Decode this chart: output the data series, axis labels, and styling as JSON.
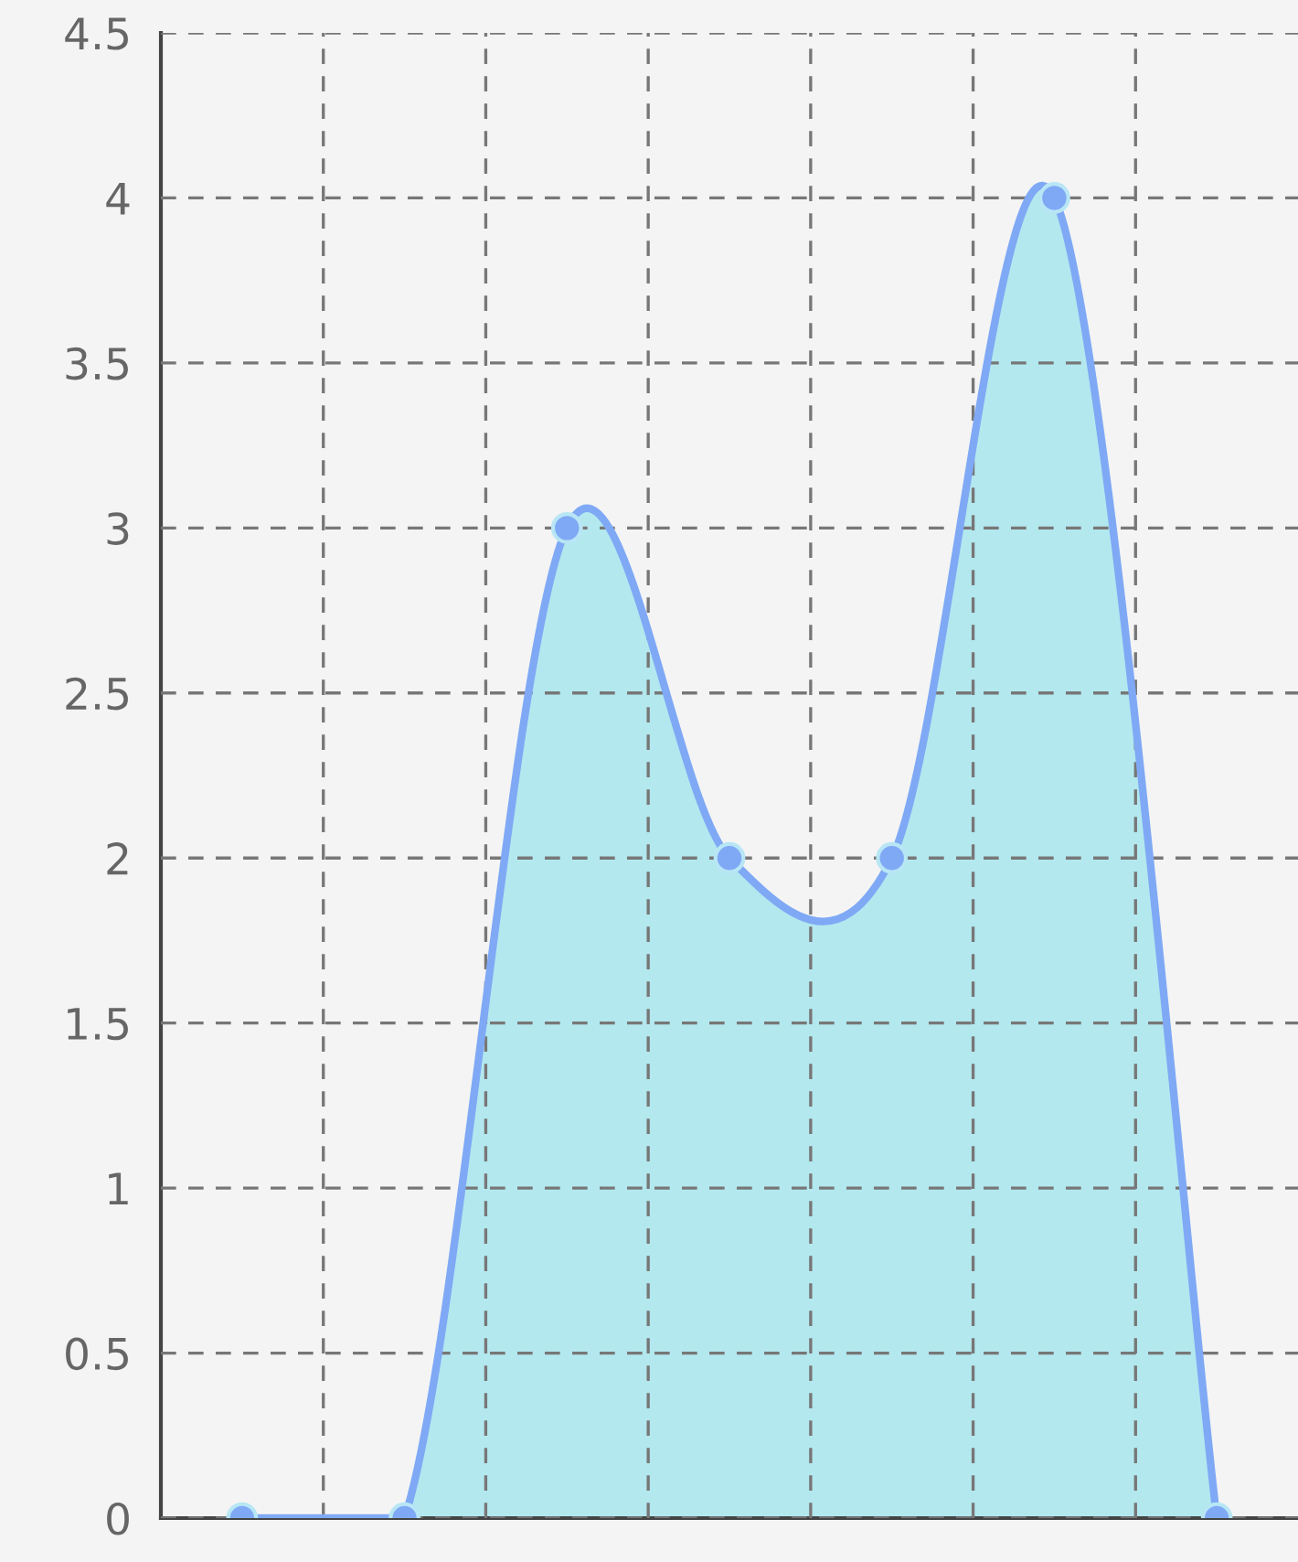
{
  "chart_data": {
    "type": "area",
    "categories": [
      null,
      null,
      null,
      null,
      null,
      null,
      null
    ],
    "series": [
      {
        "color": "#7fa9f5",
        "values": [
          0,
          0,
          3,
          2,
          2,
          4,
          0
        ]
      }
    ],
    "ylim": [
      0,
      4.5
    ],
    "yticks": [
      0,
      {
        "value": 0.5,
        "label": "0.5"
      },
      1,
      {
        "value": 1.5,
        "label": "1.5"
      },
      2,
      {
        "value": 2.5,
        "label": "2.5"
      },
      3,
      {
        "value": 3.5,
        "label": "3.5"
      },
      4,
      {
        "value": 4.5,
        "label": "4.5"
      }
    ],
    "grid": true,
    "marker": "circle",
    "line_style": "solid",
    "tick_labels": "y"
  }
}
